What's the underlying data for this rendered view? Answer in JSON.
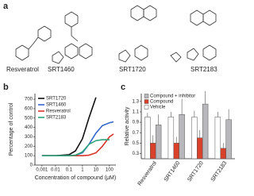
{
  "panel_labels": [
    "a",
    "b",
    "c"
  ],
  "structures": {
    "names": [
      "Resveratrol",
      "SRT1460",
      "SRT1720",
      "SRT2183"
    ]
  },
  "chart_data": [
    {
      "type": "line",
      "xlabel": "Concentration of compound (μM)",
      "ylabel": "Percentage of control",
      "xscale": "log",
      "x": [
        0.001,
        0.01,
        0.1,
        0.3,
        1,
        3,
        10,
        30,
        100,
        200
      ],
      "xlim": [
        0.0003,
        300
      ],
      "xticks": [
        0.001,
        0.01,
        0.1,
        1,
        10,
        100
      ],
      "ylim": [
        0,
        760
      ],
      "yticks": [
        0,
        100,
        200,
        300,
        400,
        500,
        600,
        700
      ],
      "series": [
        {
          "name": "SRT1720",
          "color": "#111111",
          "values": [
            100,
            100,
            110,
            150,
            280,
            500,
            720,
            null,
            null,
            null
          ]
        },
        {
          "name": "SRT1460",
          "color": "#3366cc",
          "values": [
            100,
            100,
            100,
            105,
            130,
            220,
            340,
            420,
            450,
            460
          ]
        },
        {
          "name": "Resveratrol",
          "color": "#d9342b",
          "values": [
            100,
            100,
            100,
            100,
            100,
            105,
            130,
            200,
            300,
            330
          ]
        },
        {
          "name": "SRT2183",
          "color": "#2aa37a",
          "values": [
            100,
            100,
            100,
            105,
            140,
            220,
            260,
            270,
            270,
            null
          ]
        }
      ]
    },
    {
      "type": "bar",
      "ylabel": "Relative activity",
      "categories": [
        "Resveratrol",
        "SRT1460",
        "SRT1720",
        "SRT2183"
      ],
      "ylim": [
        0.2,
        1.45
      ],
      "yticks": [
        0.3,
        0.5,
        0.7,
        0.9,
        1.1,
        1.3
      ],
      "series": [
        {
          "name": "Vehicle",
          "color": "#ffffff",
          "values": [
            1.0,
            1.0,
            1.0,
            1.0
          ],
          "errors": [
            0.08,
            0.1,
            0.12,
            0.1
          ]
        },
        {
          "name": "Compound",
          "color": "#d9412b",
          "values": [
            0.5,
            0.5,
            0.6,
            0.4
          ],
          "errors": [
            0.15,
            0.12,
            0.15,
            0.1
          ]
        },
        {
          "name": "Compound + inhibitor",
          "color": "#b8b8bc",
          "values": [
            0.85,
            1.05,
            1.25,
            0.95
          ],
          "errors": [
            0.2,
            0.3,
            0.25,
            0.2
          ]
        }
      ],
      "legend_order": [
        2,
        1,
        0
      ]
    }
  ]
}
